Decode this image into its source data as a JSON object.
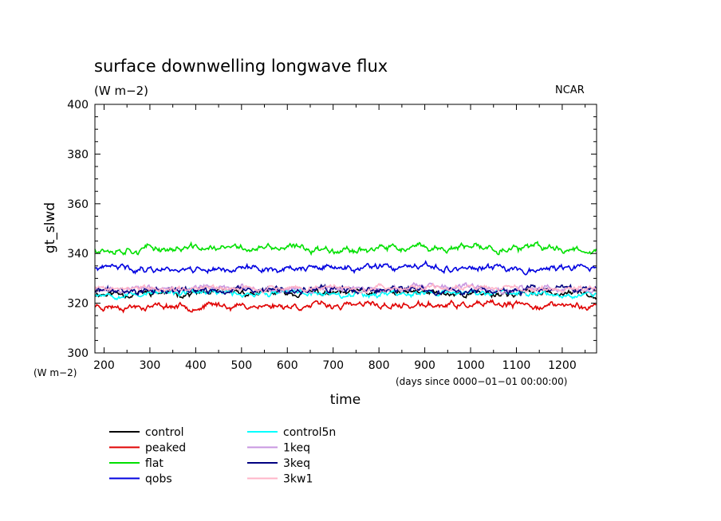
{
  "chart_data": {
    "type": "line",
    "title": "surface downwelling longwave flux",
    "units_label": "(W m−2)",
    "institution": "NCAR",
    "xlabel": "time",
    "x_units_label": "(days since 0000−01−01 00:00:00)",
    "ylabel": "gt_slwd",
    "y_units_label": "(W m−2)",
    "xlim": [
      180,
      1275
    ],
    "ylim": [
      300,
      400
    ],
    "x_ticks": [
      200,
      300,
      400,
      500,
      600,
      700,
      800,
      900,
      1000,
      1100,
      1200
    ],
    "y_ticks": [
      300,
      320,
      340,
      360,
      380,
      400
    ],
    "grid": false,
    "legend_position": "bottom-left, below plot",
    "series": [
      {
        "name": "control",
        "color": "#000000",
        "mean": 324,
        "amplitude": 1.5,
        "seed": 11
      },
      {
        "name": "peaked",
        "color": "#e00000",
        "mean": 319,
        "amplitude": 1.5,
        "seed": 23
      },
      {
        "name": "flat",
        "color": "#00e000",
        "mean": 342,
        "amplitude": 1.6,
        "seed": 37
      },
      {
        "name": "qobs",
        "color": "#0000e0",
        "mean": 334,
        "amplitude": 1.5,
        "seed": 41
      },
      {
        "name": "control5n",
        "color": "#00ffff",
        "mean": 324,
        "amplitude": 1.4,
        "seed": 53
      },
      {
        "name": "1keq",
        "color": "#c896e0",
        "mean": 326,
        "amplitude": 1.3,
        "seed": 67
      },
      {
        "name": "3keq",
        "color": "#000080",
        "mean": 325,
        "amplitude": 1.6,
        "seed": 71
      },
      {
        "name": "3kw1",
        "color": "#ffb4c8",
        "mean": 326,
        "amplitude": 1.3,
        "seed": 89
      }
    ]
  }
}
